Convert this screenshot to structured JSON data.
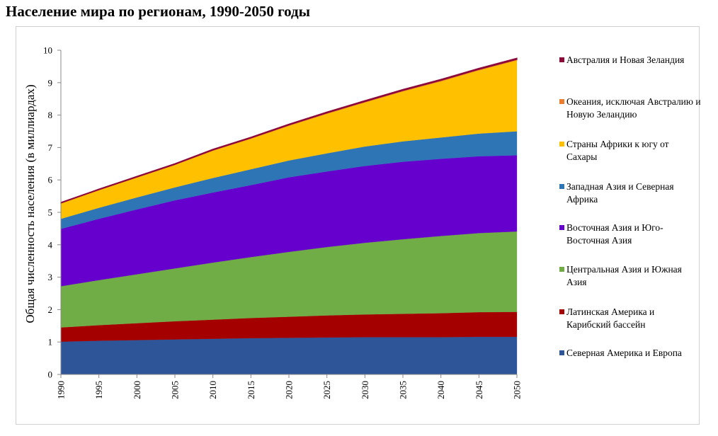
{
  "title": "Население мира по регионам, 1990-2050 годы",
  "chart_data": {
    "type": "area",
    "stacked": true,
    "title": "Население мира по регионам, 1990-2050 годы",
    "xlabel": "",
    "ylabel": "Общая численность населения (в миллиардах)",
    "x": [
      1990,
      1995,
      2000,
      2005,
      2010,
      2015,
      2020,
      2025,
      2030,
      2035,
      2040,
      2045,
      2050
    ],
    "xticks": [
      "1990",
      "1995",
      "2000",
      "2005",
      "2010",
      "2015",
      "2020",
      "2025",
      "2030",
      "2035",
      "2040",
      "2045",
      "2050"
    ],
    "yticks": [
      "0",
      "1",
      "2",
      "3",
      "4",
      "5",
      "6",
      "7",
      "8",
      "9",
      "10"
    ],
    "ylim": [
      0,
      10
    ],
    "xlim": [
      1990,
      2050
    ],
    "grid": false,
    "legend_position": "right",
    "series": [
      {
        "name": "Северная Америка и Европа",
        "color": "#2E5597",
        "values": [
          1.01,
          1.04,
          1.06,
          1.08,
          1.1,
          1.12,
          1.13,
          1.14,
          1.15,
          1.15,
          1.15,
          1.16,
          1.16
        ]
      },
      {
        "name": "Латинская Америка и Карибский бассейн",
        "color": "#A50000",
        "values": [
          0.44,
          0.48,
          0.52,
          0.56,
          0.59,
          0.62,
          0.65,
          0.68,
          0.7,
          0.72,
          0.74,
          0.76,
          0.77
        ]
      },
      {
        "name": "Центральная Азия и Южная Азия",
        "color": "#70AD47",
        "values": [
          1.27,
          1.39,
          1.51,
          1.63,
          1.76,
          1.88,
          2.0,
          2.11,
          2.21,
          2.3,
          2.38,
          2.44,
          2.48
        ]
      },
      {
        "name": "Восточная Азия и Юго-Восточная Азия",
        "color": "#6600CC",
        "values": [
          1.77,
          1.89,
          2.0,
          2.1,
          2.16,
          2.22,
          2.3,
          2.33,
          2.37,
          2.39,
          2.38,
          2.37,
          2.35
        ]
      },
      {
        "name": "Западная Азия и Северная Африка",
        "color": "#2E75B6",
        "values": [
          0.31,
          0.34,
          0.37,
          0.4,
          0.45,
          0.49,
          0.52,
          0.56,
          0.6,
          0.63,
          0.66,
          0.7,
          0.74
        ]
      },
      {
        "name": "Страны Африки к югу от Сахары",
        "color": "#FFC000",
        "values": [
          0.48,
          0.55,
          0.62,
          0.7,
          0.85,
          0.95,
          1.08,
          1.23,
          1.37,
          1.55,
          1.74,
          1.96,
          2.2
        ]
      },
      {
        "name": "Океания, исключая Австралию и Новую Зеландию",
        "color": "#ED7D31",
        "values": [
          0.006,
          0.007,
          0.008,
          0.009,
          0.01,
          0.011,
          0.012,
          0.013,
          0.014,
          0.016,
          0.017,
          0.018,
          0.019
        ]
      },
      {
        "name": "Австралия и Новая Зеландия",
        "color": "#8B0A3A",
        "values": [
          0.02,
          0.021,
          0.023,
          0.024,
          0.026,
          0.028,
          0.03,
          0.032,
          0.034,
          0.035,
          0.036,
          0.037,
          0.038
        ]
      }
    ]
  }
}
